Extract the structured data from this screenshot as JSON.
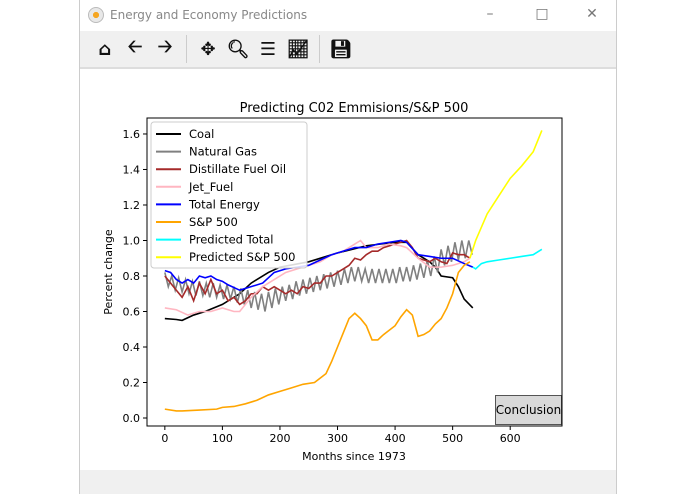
{
  "window": {
    "title": "Energy and Economy Predictions",
    "controls": [
      "minimize",
      "maximize",
      "close"
    ]
  },
  "toolbar": {
    "icons": [
      "home-icon",
      "back-arrow-icon",
      "forward-arrow-icon",
      "pan-icon",
      "zoom-icon",
      "subplots-icon",
      "edit-axes-icon",
      "save-icon"
    ]
  },
  "conclusion_button": "Conclusion",
  "chart_data": {
    "type": "line",
    "title": "Predicting C02 Emmisions/S&P 500",
    "xlabel": "Months since 1973",
    "ylabel": "Percent change",
    "xlim": [
      -31,
      690
    ],
    "ylim": [
      -0.045,
      1.69
    ],
    "xticks": [
      0,
      100,
      200,
      300,
      400,
      500,
      600
    ],
    "yticks": [
      "0.0",
      "0.2",
      "0.4",
      "0.6",
      "0.8",
      "1.0",
      "1.2",
      "1.4",
      "1.6"
    ],
    "grid": false,
    "legend_placement": "upper-left",
    "series": [
      {
        "name": "Coal",
        "color": "#000000",
        "x": [
          0,
          20,
          30,
          50,
          70,
          100,
          130,
          150,
          180,
          200,
          250,
          300,
          350,
          400,
          420,
          440,
          460,
          470,
          480,
          500,
          510,
          520,
          535
        ],
        "y": [
          0.56,
          0.555,
          0.55,
          0.58,
          0.6,
          0.64,
          0.7,
          0.76,
          0.82,
          0.85,
          0.88,
          0.93,
          0.97,
          0.99,
          0.99,
          0.92,
          0.88,
          0.85,
          0.8,
          0.79,
          0.74,
          0.67,
          0.62
        ]
      },
      {
        "name": "Natural Gas",
        "color": "#808080",
        "x": [
          0,
          6,
          12,
          18,
          24,
          30,
          36,
          42,
          48,
          54,
          60,
          66,
          72,
          78,
          84,
          90,
          96,
          102,
          108,
          114,
          120,
          126,
          132,
          138,
          144,
          150,
          156,
          162,
          168,
          174,
          180,
          186,
          192,
          198,
          204,
          210,
          216,
          222,
          228,
          234,
          240,
          246,
          252,
          258,
          264,
          270,
          276,
          282,
          288,
          294,
          300,
          306,
          312,
          318,
          324,
          330,
          336,
          342,
          348,
          354,
          360,
          366,
          372,
          378,
          384,
          390,
          396,
          402,
          408,
          414,
          420,
          426,
          432,
          438,
          444,
          450,
          456,
          462,
          468,
          474,
          480,
          486,
          492,
          498,
          504,
          510,
          516,
          522,
          528,
          534
        ],
        "y": [
          0.82,
          0.74,
          0.8,
          0.72,
          0.79,
          0.71,
          0.78,
          0.7,
          0.77,
          0.69,
          0.77,
          0.69,
          0.76,
          0.68,
          0.76,
          0.68,
          0.75,
          0.67,
          0.75,
          0.67,
          0.74,
          0.65,
          0.73,
          0.64,
          0.72,
          0.62,
          0.71,
          0.61,
          0.7,
          0.6,
          0.71,
          0.62,
          0.73,
          0.64,
          0.74,
          0.66,
          0.75,
          0.67,
          0.77,
          0.69,
          0.78,
          0.7,
          0.79,
          0.71,
          0.8,
          0.72,
          0.81,
          0.73,
          0.82,
          0.74,
          0.83,
          0.75,
          0.84,
          0.76,
          0.85,
          0.77,
          0.85,
          0.77,
          0.84,
          0.76,
          0.84,
          0.76,
          0.84,
          0.76,
          0.84,
          0.76,
          0.84,
          0.76,
          0.85,
          0.77,
          0.85,
          0.77,
          0.86,
          0.78,
          0.87,
          0.79,
          0.89,
          0.8,
          0.91,
          0.82,
          0.95,
          0.86,
          0.97,
          0.88,
          0.99,
          0.89,
          1.0,
          0.9,
          1.0,
          0.92
        ]
      },
      {
        "name": "Distillate Fuel Oil",
        "color": "#a52a2a",
        "x": [
          0,
          10,
          20,
          30,
          40,
          50,
          60,
          70,
          80,
          90,
          100,
          110,
          120,
          130,
          140,
          150,
          160,
          170,
          180,
          190,
          200,
          210,
          220,
          230,
          240,
          250,
          260,
          270,
          280,
          290,
          300,
          310,
          320,
          330,
          340,
          350,
          360,
          370,
          380,
          390,
          400,
          410,
          420,
          430,
          440,
          450,
          460,
          470,
          480,
          490,
          500,
          510,
          520,
          530
        ],
        "y": [
          0.8,
          0.76,
          0.72,
          0.68,
          0.74,
          0.66,
          0.76,
          0.7,
          0.78,
          0.7,
          0.72,
          0.66,
          0.68,
          0.64,
          0.66,
          0.7,
          0.7,
          0.74,
          0.72,
          0.74,
          0.72,
          0.7,
          0.72,
          0.7,
          0.74,
          0.73,
          0.76,
          0.76,
          0.8,
          0.8,
          0.82,
          0.84,
          0.86,
          0.9,
          0.89,
          0.92,
          0.94,
          0.94,
          0.96,
          0.97,
          0.98,
          0.99,
          1.0,
          0.96,
          0.9,
          0.89,
          0.88,
          0.9,
          0.88,
          0.87,
          0.93,
          0.92,
          0.92,
          0.9
        ]
      },
      {
        "name": "Jet_Fuel",
        "color": "#ffb6c1",
        "x": [
          0,
          20,
          40,
          60,
          80,
          100,
          120,
          130,
          150,
          170,
          190,
          210,
          230,
          250,
          270,
          290,
          310,
          330,
          340,
          350,
          370,
          390,
          410,
          420,
          440,
          460,
          480,
          500,
          520,
          530
        ],
        "y": [
          0.62,
          0.61,
          0.58,
          0.6,
          0.6,
          0.62,
          0.6,
          0.6,
          0.68,
          0.74,
          0.78,
          0.82,
          0.84,
          0.86,
          0.88,
          0.92,
          0.94,
          0.98,
          1.0,
          0.96,
          0.96,
          0.98,
          0.97,
          0.96,
          0.9,
          0.85,
          0.85,
          0.86,
          0.88,
          0.9
        ]
      },
      {
        "name": "Total Energy",
        "color": "#0000ff",
        "x": [
          0,
          10,
          20,
          30,
          40,
          50,
          60,
          70,
          80,
          90,
          100,
          110,
          130,
          150,
          170,
          190,
          210,
          230,
          250,
          270,
          290,
          310,
          330,
          350,
          370,
          390,
          410,
          420,
          440,
          460,
          480,
          500,
          520,
          535
        ],
        "y": [
          0.83,
          0.82,
          0.78,
          0.76,
          0.78,
          0.76,
          0.8,
          0.79,
          0.8,
          0.78,
          0.77,
          0.75,
          0.72,
          0.74,
          0.76,
          0.82,
          0.84,
          0.85,
          0.86,
          0.89,
          0.92,
          0.94,
          0.96,
          0.96,
          0.98,
          0.99,
          1.0,
          0.99,
          0.92,
          0.91,
          0.9,
          0.9,
          0.87,
          0.85
        ]
      },
      {
        "name": "S&P 500",
        "color": "#ffa500",
        "x": [
          0,
          20,
          30,
          60,
          90,
          100,
          120,
          140,
          160,
          180,
          200,
          220,
          240,
          260,
          280,
          290,
          300,
          310,
          320,
          330,
          340,
          350,
          360,
          370,
          380,
          400,
          410,
          420,
          430,
          440,
          450,
          460,
          470,
          480,
          490,
          500,
          510,
          520,
          530
        ],
        "y": [
          0.05,
          0.04,
          0.04,
          0.045,
          0.05,
          0.06,
          0.065,
          0.08,
          0.1,
          0.13,
          0.15,
          0.17,
          0.19,
          0.2,
          0.25,
          0.32,
          0.4,
          0.48,
          0.56,
          0.59,
          0.56,
          0.52,
          0.44,
          0.44,
          0.47,
          0.52,
          0.57,
          0.61,
          0.58,
          0.46,
          0.47,
          0.49,
          0.53,
          0.56,
          0.62,
          0.7,
          0.82,
          0.86,
          0.88
        ]
      },
      {
        "name": "Predicted Total",
        "color": "#00ffff",
        "x": [
          535,
          540,
          550,
          560,
          580,
          600,
          620,
          640,
          655
        ],
        "y": [
          0.85,
          0.84,
          0.87,
          0.88,
          0.89,
          0.9,
          0.91,
          0.92,
          0.95
        ]
      },
      {
        "name": "Predicted S&P 500",
        "color": "#ffff00",
        "x": [
          530,
          540,
          560,
          580,
          600,
          620,
          640,
          655
        ],
        "y": [
          0.9,
          1.0,
          1.15,
          1.25,
          1.35,
          1.42,
          1.5,
          1.62
        ]
      }
    ]
  }
}
